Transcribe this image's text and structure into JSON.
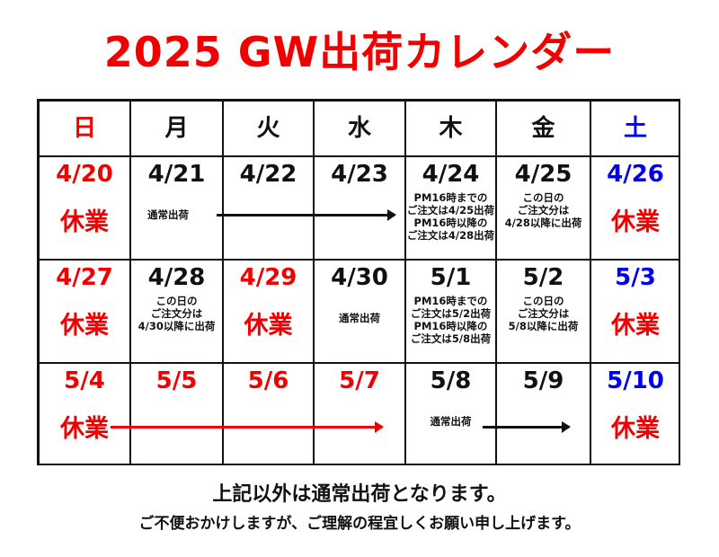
{
  "title": "2025 GW出荷カレンダー",
  "colors": {
    "holiday": "#f00000",
    "saturday": "#0000ee",
    "text": "#111111"
  },
  "weekdays": [
    {
      "label": "日",
      "color": "red"
    },
    {
      "label": "月",
      "color": "blk"
    },
    {
      "label": "火",
      "color": "blk"
    },
    {
      "label": "水",
      "color": "blk"
    },
    {
      "label": "木",
      "color": "blk"
    },
    {
      "label": "金",
      "color": "blk"
    },
    {
      "label": "土",
      "color": "blue"
    }
  ],
  "weeks": [
    [
      {
        "date": "4/20",
        "color": "red",
        "status": "休業"
      },
      {
        "date": "4/21",
        "color": "blk",
        "note": "通常出荷"
      },
      {
        "date": "4/22",
        "color": "blk"
      },
      {
        "date": "4/23",
        "color": "blk"
      },
      {
        "date": "4/24",
        "color": "blk",
        "note": "PM16時までの\nご注文は4/25出荷\nPM16時以降の\nご注文は4/28出荷"
      },
      {
        "date": "4/25",
        "color": "blk",
        "note": "この日の\nご注文分は\n4/28以降に出荷"
      },
      {
        "date": "4/26",
        "color": "blue",
        "status": "休業"
      }
    ],
    [
      {
        "date": "4/27",
        "color": "red",
        "status": "休業"
      },
      {
        "date": "4/28",
        "color": "blk",
        "note": "この日の\nご注文分は\n4/30以降に出荷"
      },
      {
        "date": "4/29",
        "color": "red",
        "status": "休業"
      },
      {
        "date": "4/30",
        "color": "blk",
        "note": "通常出荷"
      },
      {
        "date": "5/1",
        "color": "blk",
        "note": "PM16時までの\nご注文は5/2出荷\nPM16時以降の\nご注文は5/8出荷"
      },
      {
        "date": "5/2",
        "color": "blk",
        "note": "この日の\nご注文分は\n5/8以降に出荷"
      },
      {
        "date": "5/3",
        "color": "blue",
        "status": "休業"
      }
    ],
    [
      {
        "date": "5/4",
        "color": "red",
        "status": "休業"
      },
      {
        "date": "5/5",
        "color": "red"
      },
      {
        "date": "5/6",
        "color": "red"
      },
      {
        "date": "5/7",
        "color": "red"
      },
      {
        "date": "5/8",
        "color": "blk",
        "note": "通常出荷"
      },
      {
        "date": "5/9",
        "color": "blk"
      },
      {
        "date": "5/10",
        "color": "blue",
        "status": "休業"
      }
    ]
  ],
  "footer": {
    "line1": "上記以外は通常出荷となります。",
    "line2": "ご不便おかけしますが、ご理解の程宜しくお願い申し上げます。"
  }
}
